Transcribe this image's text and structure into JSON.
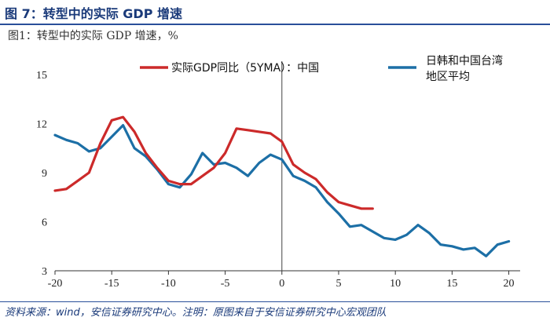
{
  "header": {
    "title": "图 7：转型中的实际 GDP 增速"
  },
  "footer": {
    "source": "资料来源：wind，安信证券研究中心。注明：原图来自于安信证券研究中心宏观团队"
  },
  "chart_data": {
    "type": "line",
    "title": "图1：转型中的实际 GDP 增速，%",
    "xlabel": "",
    "ylabel": "",
    "xlim": [
      -20,
      21
    ],
    "ylim": [
      3,
      15
    ],
    "x_ticks": [
      -20,
      -15,
      -10,
      -5,
      0,
      5,
      10,
      15,
      20
    ],
    "y_ticks": [
      3,
      6,
      9,
      12,
      15
    ],
    "x_tick_labels": [
      "-20",
      "-15",
      "-10",
      "-5",
      "0",
      "5",
      "10",
      "15",
      "20"
    ],
    "y_tick_labels": [
      "3",
      "6",
      "9",
      "12",
      "15"
    ],
    "reference_line_x": 0,
    "legend_position": "top",
    "series": [
      {
        "name": "实际GDP同比（5YMA）：中国",
        "color": "#cc2a2a",
        "x": [
          -20,
          -19,
          -18,
          -17,
          -16,
          -15,
          -14,
          -13,
          -12,
          -11,
          -10,
          -9,
          -8,
          -7,
          -6,
          -5,
          -4,
          -3,
          -2,
          -1,
          0,
          1,
          2,
          3,
          4,
          5,
          6,
          7,
          8
        ],
        "values": [
          7.9,
          8.0,
          8.5,
          9.0,
          10.8,
          12.2,
          12.4,
          11.5,
          10.2,
          9.3,
          8.5,
          8.3,
          8.3,
          8.8,
          9.3,
          10.2,
          11.7,
          11.6,
          11.5,
          11.4,
          10.9,
          9.5,
          9.0,
          8.6,
          7.8,
          7.2,
          7.0,
          6.8,
          6.8
        ]
      },
      {
        "name": "日韩和中国台湾地区平均",
        "color": "#1c6fa6",
        "x": [
          -20,
          -19,
          -18,
          -17,
          -16,
          -15,
          -14,
          -13,
          -12,
          -11,
          -10,
          -9,
          -8,
          -7,
          -6,
          -5,
          -4,
          -3,
          -2,
          -1,
          0,
          1,
          2,
          3,
          4,
          5,
          6,
          7,
          8,
          9,
          10,
          11,
          12,
          13,
          14,
          15,
          16,
          17,
          18,
          19,
          20
        ],
        "values": [
          11.3,
          11.0,
          10.8,
          10.3,
          10.5,
          11.2,
          11.9,
          10.5,
          10.0,
          9.2,
          8.3,
          8.1,
          8.9,
          10.2,
          9.5,
          9.6,
          9.3,
          8.8,
          9.6,
          10.1,
          9.8,
          8.8,
          8.5,
          8.1,
          7.2,
          6.5,
          5.7,
          5.8,
          5.4,
          5.0,
          4.9,
          5.2,
          5.8,
          5.3,
          4.6,
          4.5,
          4.3,
          4.4,
          3.9,
          4.6,
          4.8
        ]
      }
    ]
  }
}
